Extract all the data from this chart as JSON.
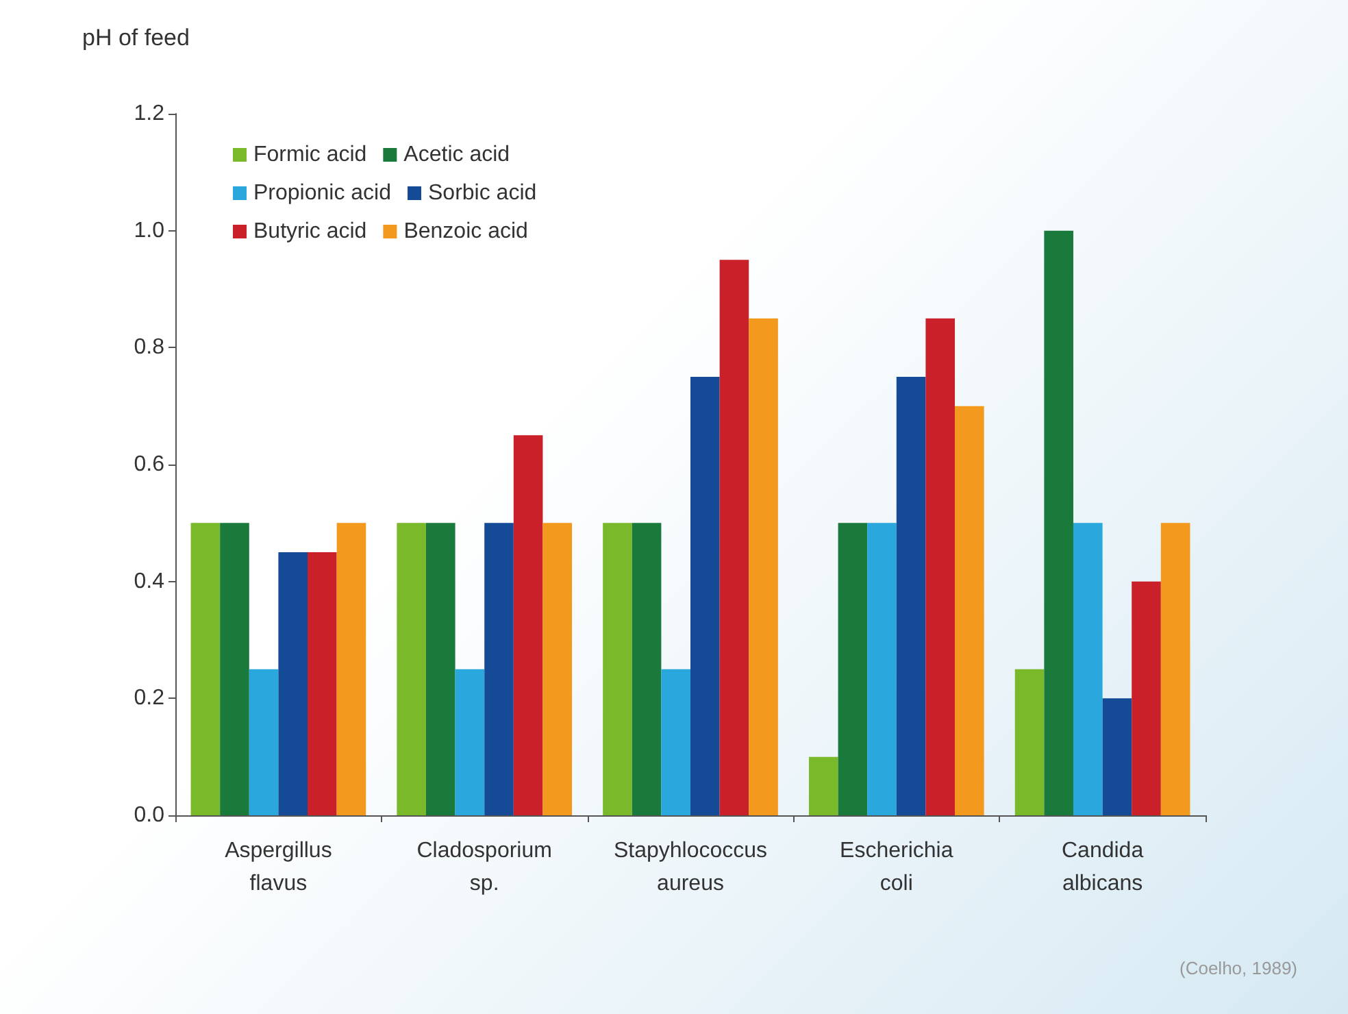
{
  "chart_data": {
    "type": "bar",
    "ylabel": "pH of feed",
    "categories": [
      "Aspergillus flavus",
      "Cladosporium sp.",
      "Stapyhlococcus aureus",
      "Escherichia coli",
      "Candida albicans"
    ],
    "series": [
      {
        "name": "Formic acid",
        "color": "#7ab929",
        "values": [
          0.5,
          0.5,
          0.5,
          0.1,
          0.25
        ]
      },
      {
        "name": "Acetic acid",
        "color": "#1a7a3c",
        "values": [
          0.5,
          0.5,
          0.5,
          0.5,
          1.0
        ]
      },
      {
        "name": "Propionic acid",
        "color": "#2aa7dc",
        "values": [
          0.25,
          0.25,
          0.25,
          0.5,
          0.5
        ]
      },
      {
        "name": "Sorbic acid",
        "color": "#154a96",
        "values": [
          0.45,
          0.5,
          0.75,
          0.75,
          0.2
        ]
      },
      {
        "name": "Butyric acid",
        "color": "#c9202a",
        "values": [
          0.45,
          0.65,
          0.95,
          0.85,
          0.4
        ]
      },
      {
        "name": "Benzoic acid",
        "color": "#f39a1e",
        "values": [
          0.5,
          0.5,
          0.85,
          0.7,
          0.5
        ]
      }
    ],
    "ylim": [
      0,
      1.2
    ],
    "yticks": [
      {
        "value": 0,
        "label": "0.0"
      },
      0.2,
      0.4,
      0.6,
      0.8,
      {
        "value": 1,
        "label": "1.0"
      },
      1.2
    ],
    "grid": false,
    "legend": "top left",
    "annotations": [
      "(Coelho, 1989)"
    ]
  }
}
